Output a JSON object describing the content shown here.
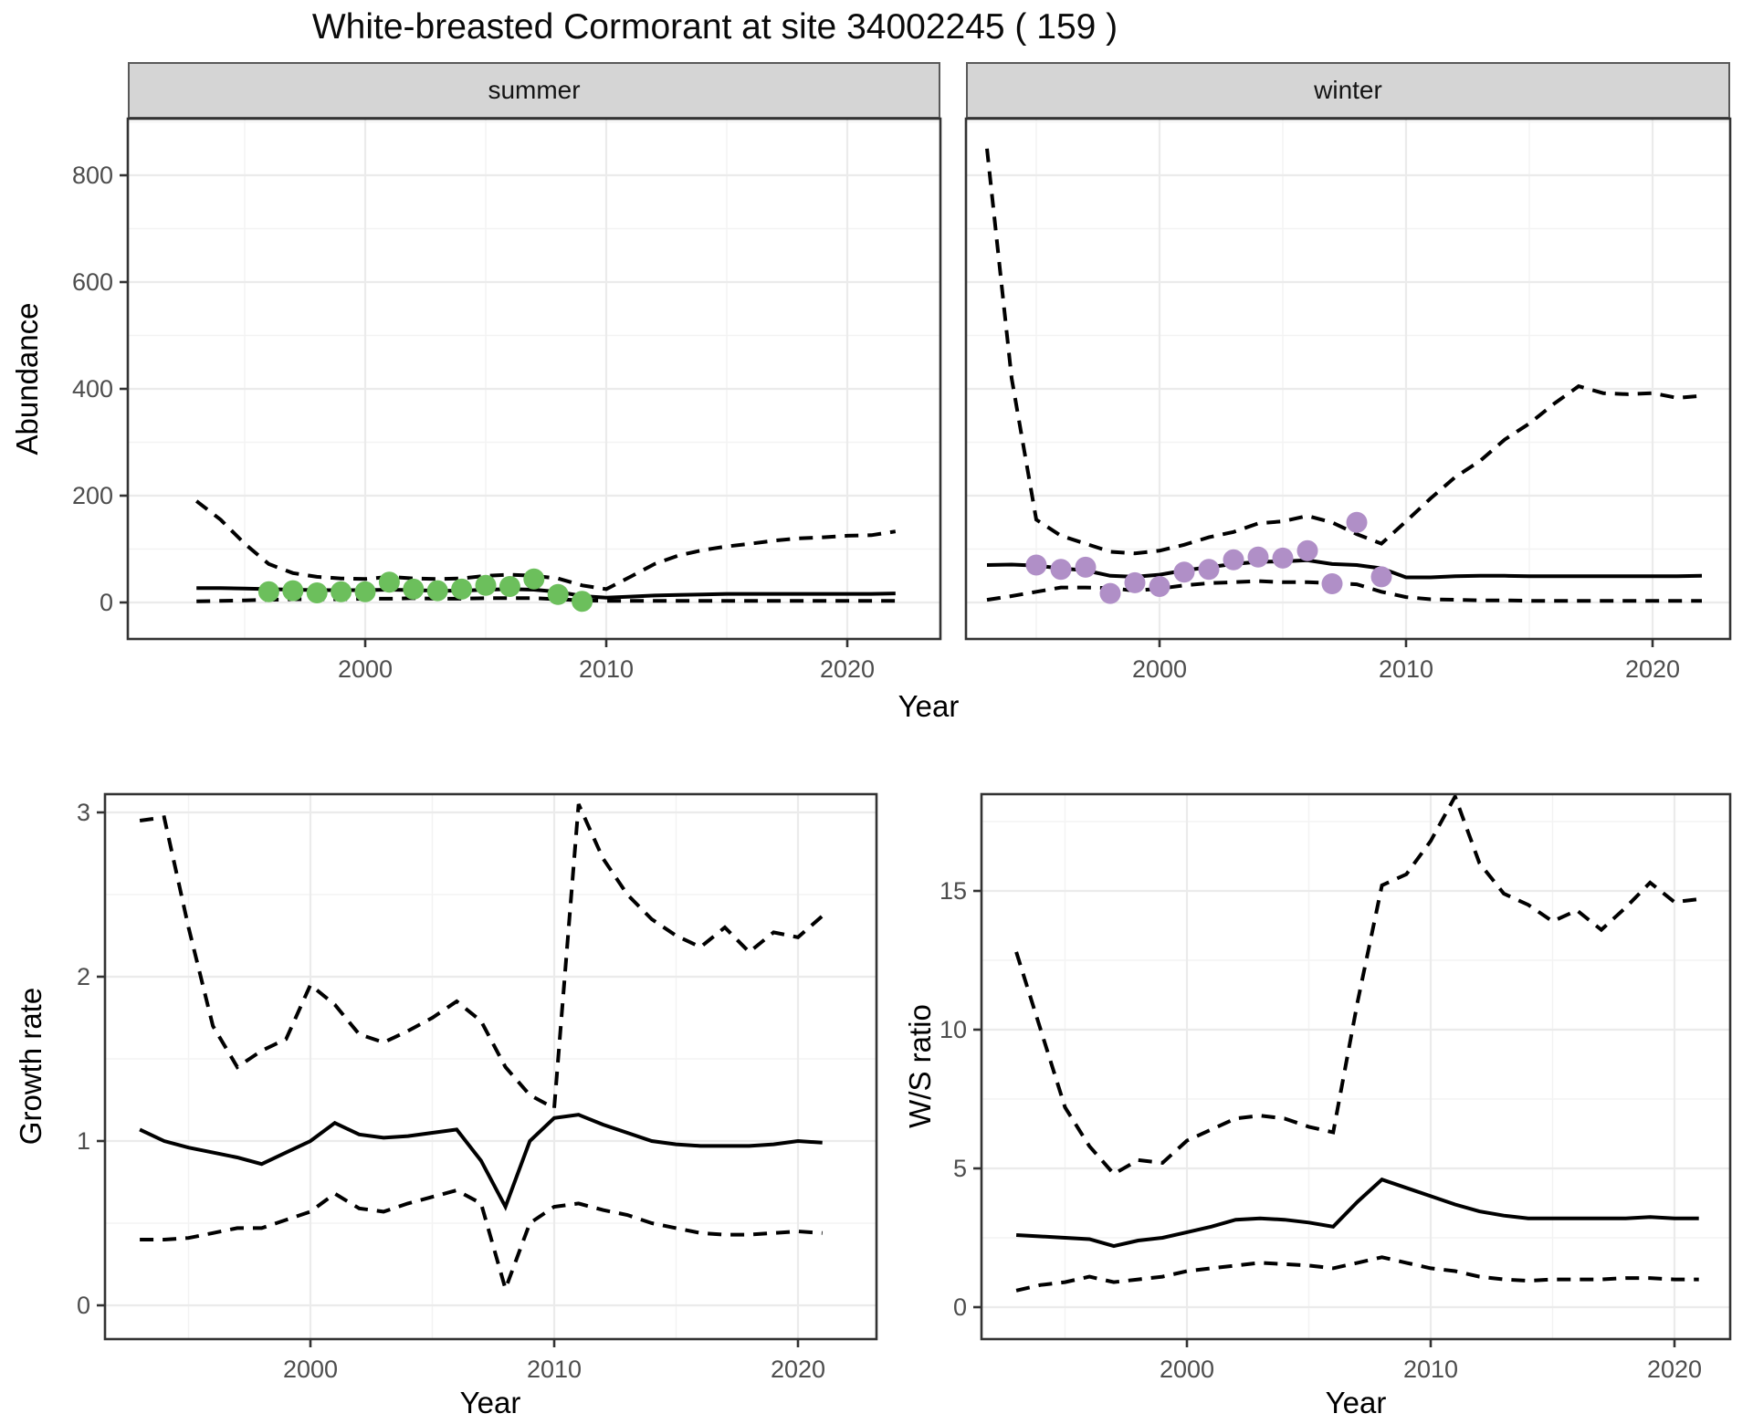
{
  "title": "White-breasted Cormorant at site 34002245 ( 159 )",
  "labels": {
    "facets": [
      "summer",
      "winter"
    ],
    "x_axis": "Year",
    "y_axis_top": "Abundance",
    "y_axis_growth": "Growth rate",
    "y_axis_ws": "W/S ratio"
  },
  "colors": {
    "line": "#000000",
    "points_summer": "#6CBF5C",
    "points_winter": "#B08FC7",
    "grid_major": "#EBEBEB",
    "grid_minor": "#F3F3F3",
    "panel_border": "#333333",
    "tick_label": "#4D4D4D",
    "tick_mark": "#333333"
  },
  "chart_data": [
    {
      "id": "abundance-summer",
      "type": "line",
      "title": "summer",
      "xlabel": "Year",
      "ylabel": "Abundance",
      "xticks": [
        2000,
        2010,
        2020
      ],
      "yticks": [
        0,
        200,
        400,
        600,
        800
      ],
      "ylim": [
        0,
        900
      ],
      "x": [
        1993,
        1994,
        1995,
        1996,
        1997,
        1998,
        1999,
        2000,
        2001,
        2002,
        2003,
        2004,
        2005,
        2006,
        2007,
        2008,
        2009,
        2010,
        2011,
        2012,
        2013,
        2014,
        2015,
        2016,
        2017,
        2018,
        2019,
        2020,
        2021,
        2022
      ],
      "series": [
        {
          "name": "upper_ci",
          "style": "dashed",
          "values": [
            190,
            155,
            110,
            72,
            55,
            48,
            45,
            44,
            48,
            45,
            44,
            45,
            50,
            52,
            50,
            45,
            32,
            25,
            48,
            72,
            88,
            98,
            105,
            110,
            116,
            120,
            122,
            125,
            126,
            133
          ]
        },
        {
          "name": "estimate",
          "style": "solid",
          "values": [
            27,
            27,
            26,
            25,
            24,
            23,
            23,
            23,
            24,
            23,
            22,
            22,
            24,
            25,
            24,
            20,
            12,
            9,
            11,
            13,
            14,
            15,
            16,
            16,
            16,
            16,
            16,
            16,
            16,
            17
          ]
        },
        {
          "name": "lower_ci",
          "style": "dashed",
          "values": [
            2,
            3,
            4,
            5,
            6,
            6,
            6,
            7,
            7,
            8,
            7,
            7,
            8,
            8,
            8,
            6,
            4,
            3,
            3,
            3,
            3,
            3,
            3,
            3,
            3,
            3,
            3,
            3,
            3,
            3
          ]
        }
      ],
      "points": {
        "name": "observations",
        "color_key": "points_summer",
        "data": [
          [
            1996,
            20
          ],
          [
            1997,
            22
          ],
          [
            1998,
            18
          ],
          [
            1999,
            20
          ],
          [
            2000,
            20
          ],
          [
            2001,
            38
          ],
          [
            2002,
            25
          ],
          [
            2003,
            22
          ],
          [
            2004,
            25
          ],
          [
            2005,
            32
          ],
          [
            2006,
            30
          ],
          [
            2007,
            44
          ],
          [
            2008,
            15
          ],
          [
            2009,
            2
          ]
        ]
      }
    },
    {
      "id": "abundance-winter",
      "type": "line",
      "title": "winter",
      "xlabel": "Year",
      "ylabel": "Abundance",
      "xticks": [
        2000,
        2010,
        2020
      ],
      "yticks": [
        0,
        200,
        400,
        600,
        800
      ],
      "ylim": [
        0,
        900
      ],
      "x": [
        1993,
        1994,
        1995,
        1996,
        1997,
        1998,
        1999,
        2000,
        2001,
        2002,
        2003,
        2004,
        2005,
        2006,
        2007,
        2008,
        2009,
        2010,
        2011,
        2012,
        2013,
        2014,
        2015,
        2016,
        2017,
        2018,
        2019,
        2020,
        2021,
        2022
      ],
      "series": [
        {
          "name": "upper_ci",
          "style": "dashed",
          "values": [
            850,
            420,
            155,
            125,
            110,
            95,
            92,
            97,
            108,
            122,
            132,
            148,
            152,
            162,
            150,
            128,
            110,
            152,
            195,
            235,
            265,
            305,
            335,
            372,
            405,
            392,
            390,
            392,
            383,
            387
          ]
        },
        {
          "name": "estimate",
          "style": "solid",
          "values": [
            70,
            71,
            69,
            64,
            60,
            50,
            48,
            52,
            60,
            66,
            72,
            76,
            77,
            79,
            72,
            70,
            64,
            47,
            47,
            49,
            50,
            50,
            49,
            49,
            49,
            49,
            49,
            49,
            49,
            50
          ]
        },
        {
          "name": "lower_ci",
          "style": "dashed",
          "values": [
            5,
            12,
            20,
            28,
            28,
            27,
            22,
            26,
            32,
            36,
            38,
            40,
            38,
            38,
            36,
            34,
            20,
            10,
            6,
            5,
            4,
            4,
            3,
            3,
            3,
            3,
            3,
            3,
            3,
            3
          ]
        }
      ],
      "points": {
        "name": "observations",
        "color_key": "points_winter",
        "data": [
          [
            1995,
            70
          ],
          [
            1996,
            62
          ],
          [
            1997,
            66
          ],
          [
            1998,
            17
          ],
          [
            1999,
            37
          ],
          [
            2000,
            30
          ],
          [
            2001,
            57
          ],
          [
            2002,
            62
          ],
          [
            2003,
            80
          ],
          [
            2004,
            85
          ],
          [
            2005,
            83
          ],
          [
            2006,
            97
          ],
          [
            2007,
            35
          ],
          [
            2008,
            150
          ],
          [
            2009,
            48
          ]
        ]
      }
    },
    {
      "id": "growth-rate",
      "type": "line",
      "title": "Growth rate",
      "xlabel": "Year",
      "ylabel": "Growth rate",
      "xticks": [
        2000,
        2010,
        2020
      ],
      "yticks": [
        0,
        1,
        2,
        3
      ],
      "ylim": [
        0,
        3.1
      ],
      "x": [
        1993,
        1994,
        1995,
        1996,
        1997,
        1998,
        1999,
        2000,
        2001,
        2002,
        2003,
        2004,
        2005,
        2006,
        2007,
        2008,
        2009,
        2010,
        2011,
        2012,
        2013,
        2014,
        2015,
        2016,
        2017,
        2018,
        2019,
        2020,
        2021
      ],
      "series": [
        {
          "name": "upper_ci",
          "style": "dashed",
          "values": [
            2.95,
            2.97,
            2.3,
            1.7,
            1.45,
            1.55,
            1.62,
            1.95,
            1.83,
            1.65,
            1.6,
            1.67,
            1.75,
            1.85,
            1.73,
            1.45,
            1.28,
            1.2,
            3.05,
            2.72,
            2.5,
            2.35,
            2.25,
            2.18,
            2.3,
            2.15,
            2.27,
            2.24,
            2.37
          ]
        },
        {
          "name": "estimate",
          "style": "solid",
          "values": [
            1.07,
            1.0,
            0.96,
            0.93,
            0.9,
            0.86,
            0.93,
            1.0,
            1.11,
            1.04,
            1.02,
            1.03,
            1.05,
            1.07,
            0.88,
            0.6,
            1.0,
            1.14,
            1.16,
            1.1,
            1.05,
            1.0,
            0.98,
            0.97,
            0.97,
            0.97,
            0.98,
            1.0,
            0.99
          ]
        },
        {
          "name": "lower_ci",
          "style": "dashed",
          "values": [
            0.4,
            0.4,
            0.41,
            0.44,
            0.47,
            0.47,
            0.52,
            0.57,
            0.68,
            0.59,
            0.57,
            0.62,
            0.66,
            0.7,
            0.62,
            0.1,
            0.5,
            0.6,
            0.62,
            0.58,
            0.55,
            0.5,
            0.47,
            0.44,
            0.43,
            0.43,
            0.44,
            0.45,
            0.44
          ]
        }
      ]
    },
    {
      "id": "ws-ratio",
      "type": "line",
      "title": "W/S ratio",
      "xlabel": "Year",
      "ylabel": "W/S ratio",
      "xticks": [
        2000,
        2010,
        2020
      ],
      "yticks": [
        0,
        5,
        10,
        15
      ],
      "ylim": [
        0,
        18.5
      ],
      "x": [
        1993,
        1994,
        1995,
        1996,
        1997,
        1998,
        1999,
        2000,
        2001,
        2002,
        2003,
        2004,
        2005,
        2006,
        2007,
        2008,
        2009,
        2010,
        2011,
        2012,
        2013,
        2014,
        2015,
        2016,
        2017,
        2018,
        2019,
        2020,
        2021
      ],
      "series": [
        {
          "name": "upper_ci",
          "style": "dashed",
          "values": [
            12.8,
            10.0,
            7.2,
            5.8,
            4.8,
            5.3,
            5.2,
            6.0,
            6.4,
            6.8,
            6.9,
            6.8,
            6.5,
            6.3,
            11.0,
            15.2,
            15.6,
            16.8,
            18.4,
            16.0,
            14.9,
            14.5,
            13.9,
            14.3,
            13.6,
            14.4,
            15.3,
            14.6,
            14.7
          ]
        },
        {
          "name": "estimate",
          "style": "solid",
          "values": [
            2.6,
            2.55,
            2.5,
            2.45,
            2.2,
            2.4,
            2.5,
            2.7,
            2.9,
            3.15,
            3.2,
            3.15,
            3.05,
            2.9,
            3.8,
            4.6,
            4.3,
            4.0,
            3.7,
            3.45,
            3.3,
            3.2,
            3.2,
            3.2,
            3.2,
            3.2,
            3.25,
            3.2,
            3.2
          ]
        },
        {
          "name": "lower_ci",
          "style": "dashed",
          "values": [
            0.6,
            0.8,
            0.9,
            1.1,
            0.9,
            1.0,
            1.1,
            1.3,
            1.4,
            1.5,
            1.6,
            1.55,
            1.5,
            1.4,
            1.6,
            1.8,
            1.6,
            1.4,
            1.3,
            1.1,
            1.0,
            0.95,
            1.0,
            1.0,
            1.0,
            1.05,
            1.05,
            1.0,
            1.0
          ]
        }
      ]
    }
  ]
}
